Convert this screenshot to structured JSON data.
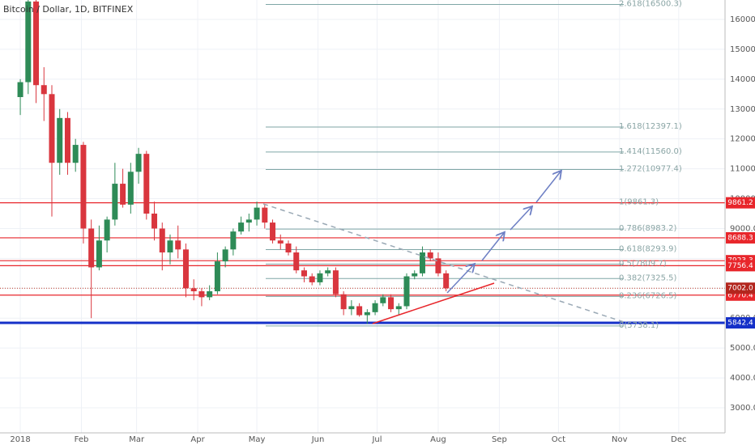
{
  "chart_data": {
    "type": "candlestick",
    "title": "Bitcoin / Dollar, 1D, BITFINEX",
    "up_color": "#2e8b57",
    "down_color": "#d9363e",
    "xlim": [
      -10.3,
      357.5
    ],
    "xticks": [
      {
        "value": 0,
        "label": "2018"
      },
      {
        "value": 31,
        "label": "Feb"
      },
      {
        "value": 59,
        "label": "Mar"
      },
      {
        "value": 90,
        "label": "Apr"
      },
      {
        "value": 120,
        "label": "May"
      },
      {
        "value": 151,
        "label": "Jun"
      },
      {
        "value": 181,
        "label": "Jul"
      },
      {
        "value": 212,
        "label": "Aug"
      },
      {
        "value": 243,
        "label": "Sep"
      },
      {
        "value": 273,
        "label": "Oct"
      },
      {
        "value": 304,
        "label": "Nov"
      },
      {
        "value": 334,
        "label": "Dec"
      }
    ],
    "ylim": [
      2160,
      16650
    ],
    "yticks": [
      {
        "value": 3000,
        "label": "3000.0"
      },
      {
        "value": 4000,
        "label": "4000.0"
      },
      {
        "value": 5000,
        "label": "5000.0"
      },
      {
        "value": 6000,
        "label": "6000.0"
      },
      {
        "value": 7000,
        "label": "7000.0"
      },
      {
        "value": 8000,
        "label": "8000.0"
      },
      {
        "value": 9000,
        "label": "9000.0"
      },
      {
        "value": 10000,
        "label": "10000.0"
      },
      {
        "value": 11000,
        "label": "11000.0"
      },
      {
        "value": 12000,
        "label": "12000.0"
      },
      {
        "value": 13000,
        "label": "13000.0"
      },
      {
        "value": 14000,
        "label": "14000.0"
      },
      {
        "value": 15000,
        "label": "15000.0"
      },
      {
        "value": 16000,
        "label": "16000.0"
      }
    ],
    "grid": true,
    "candles": [
      [
        0,
        13400,
        14000,
        12800,
        13900
      ],
      [
        4,
        13900,
        17100,
        13500,
        16600
      ],
      [
        8,
        16600,
        17000,
        13200,
        13800
      ],
      [
        12,
        13800,
        14400,
        12600,
        13500
      ],
      [
        16,
        13500,
        13800,
        9400,
        11200
      ],
      [
        20,
        11200,
        13000,
        10800,
        12700
      ],
      [
        24,
        12700,
        12900,
        10800,
        11200
      ],
      [
        28,
        11200,
        12000,
        10900,
        11800
      ],
      [
        32,
        11800,
        11900,
        8500,
        9000
      ],
      [
        36,
        9000,
        9300,
        6000,
        7700
      ],
      [
        40,
        7700,
        9100,
        7600,
        8600
      ],
      [
        44,
        8600,
        9400,
        8200,
        9300
      ],
      [
        48,
        9300,
        11200,
        9100,
        10500
      ],
      [
        52,
        10500,
        11000,
        9700,
        9800
      ],
      [
        56,
        9800,
        11200,
        9500,
        10900
      ],
      [
        60,
        10900,
        11700,
        10500,
        11500
      ],
      [
        64,
        11500,
        11600,
        9300,
        9500
      ],
      [
        68,
        9500,
        9900,
        8600,
        9000
      ],
      [
        72,
        9000,
        9200,
        7600,
        8200
      ],
      [
        76,
        8200,
        8800,
        7800,
        8600
      ],
      [
        80,
        8600,
        9100,
        8000,
        8300
      ],
      [
        84,
        8300,
        8500,
        6700,
        7000
      ],
      [
        88,
        7000,
        7300,
        6600,
        6900
      ],
      [
        92,
        6900,
        7000,
        6400,
        6700
      ],
      [
        96,
        6700,
        7100,
        6600,
        6900
      ],
      [
        100,
        6900,
        8200,
        6800,
        7900
      ],
      [
        104,
        7900,
        8400,
        7700,
        8300
      ],
      [
        108,
        8300,
        9000,
        8100,
        8900
      ],
      [
        112,
        8900,
        9400,
        8800,
        9200
      ],
      [
        116,
        9200,
        9500,
        8900,
        9300
      ],
      [
        120,
        9300,
        9900,
        9100,
        9700
      ],
      [
        124,
        9700,
        9800,
        9000,
        9200
      ],
      [
        128,
        9200,
        9300,
        8500,
        8600
      ],
      [
        132,
        8600,
        8800,
        8300,
        8500
      ],
      [
        136,
        8500,
        8600,
        8100,
        8200
      ],
      [
        140,
        8200,
        8400,
        7500,
        7600
      ],
      [
        144,
        7600,
        7700,
        7200,
        7400
      ],
      [
        148,
        7400,
        7500,
        7100,
        7200
      ],
      [
        152,
        7200,
        7600,
        7100,
        7500
      ],
      [
        156,
        7500,
        7700,
        7400,
        7600
      ],
      [
        160,
        7600,
        7700,
        6700,
        6800
      ],
      [
        164,
        6800,
        6900,
        6100,
        6300
      ],
      [
        168,
        6300,
        6600,
        6100,
        6400
      ],
      [
        172,
        6400,
        6500,
        6050,
        6100
      ],
      [
        176,
        6100,
        6300,
        5800,
        6200
      ],
      [
        180,
        6200,
        6600,
        6100,
        6500
      ],
      [
        184,
        6500,
        6800,
        6400,
        6700
      ],
      [
        188,
        6700,
        6800,
        6200,
        6300
      ],
      [
        192,
        6300,
        6500,
        6100,
        6400
      ],
      [
        196,
        6400,
        7500,
        6300,
        7400
      ],
      [
        200,
        7400,
        7600,
        7300,
        7500
      ],
      [
        204,
        7500,
        8400,
        7400,
        8200
      ],
      [
        208,
        8200,
        8300,
        7900,
        8000
      ],
      [
        212,
        8000,
        8200,
        7400,
        7500
      ],
      [
        216,
        7500,
        7600,
        6900,
        7000
      ]
    ],
    "fib_levels": [
      {
        "value": 16500.3,
        "label": "2.618(16500.3)"
      },
      {
        "value": 12397.1,
        "label": "1.618(12397.1)"
      },
      {
        "value": 11560.0,
        "label": "1.414(11560.0)"
      },
      {
        "value": 10977.4,
        "label": "1.272(10977.4)"
      },
      {
        "value": 9861.3,
        "label": "1(9861.3)"
      },
      {
        "value": 8983.2,
        "label": "0.786(8983.2)"
      },
      {
        "value": 8293.9,
        "label": "0.618(8293.9)"
      },
      {
        "value": 7809.7,
        "label": "0.5(7809.7)"
      },
      {
        "value": 7325.5,
        "label": "0.382(7325.5)"
      },
      {
        "value": 6726.5,
        "label": "0.236(6726.5)"
      },
      {
        "value": 5738.1,
        "label": "0(5738.1)"
      }
    ],
    "fib_color": "#7fa6a6",
    "levels": [
      9861.2,
      8688.3,
      7923.3,
      7756.4,
      6770.4
    ],
    "level_color": "#e8262b",
    "current_price": {
      "value": 7002.0,
      "label": "7002.0"
    },
    "support": 5842.4,
    "support_color": "#1530c8"
  }
}
